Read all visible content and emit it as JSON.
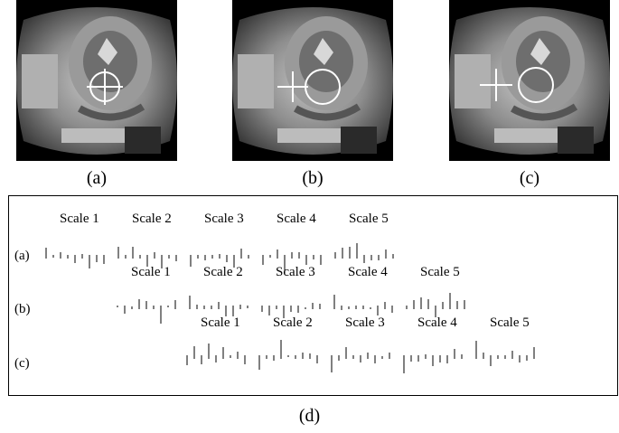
{
  "panels": [
    {
      "label": "(a)"
    },
    {
      "label": "(b)"
    },
    {
      "label": "(c)"
    }
  ],
  "plot": {
    "rows": [
      {
        "label": "(a)",
        "scales": [
          "Scale 1",
          "Scale 2",
          "Scale 3",
          "Scale 4",
          "Scale 5"
        ]
      },
      {
        "label": "(b)",
        "scales": [
          "Scale 1",
          "Scale 2",
          "Scale 3",
          "Scale 4",
          "Scale 5"
        ]
      },
      {
        "label": "(c)",
        "scales": [
          "Scale 1",
          "Scale 2",
          "Scale 3",
          "Scale 4",
          "Scale 5"
        ]
      }
    ]
  },
  "figure_caption": "(d)",
  "colors": {
    "bar": "#000000",
    "overlay": "#ffffff"
  }
}
